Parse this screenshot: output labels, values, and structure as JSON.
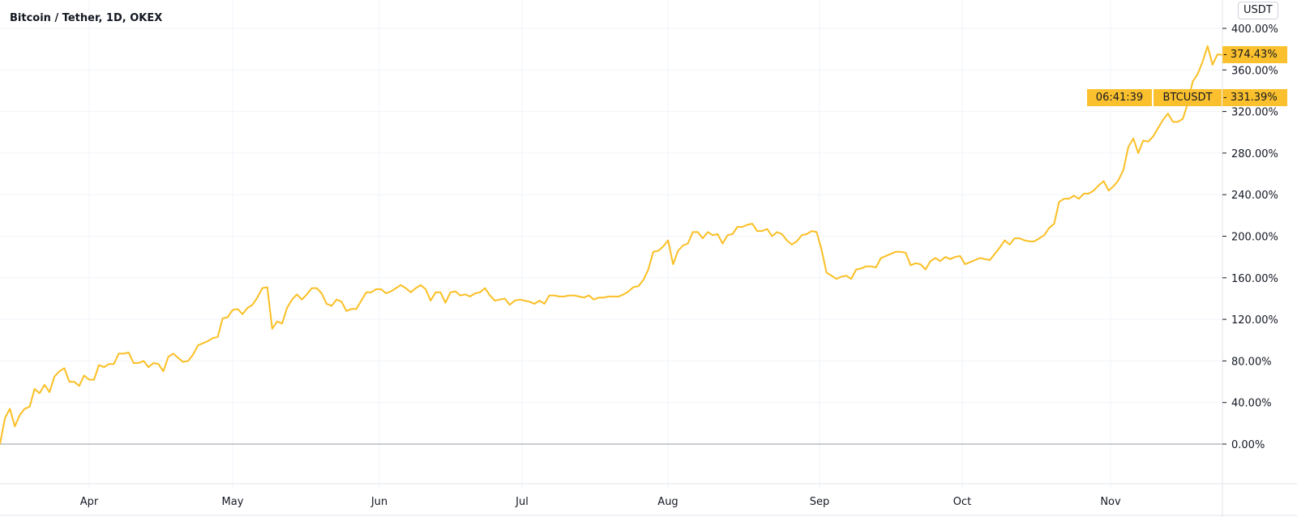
{
  "header": {
    "title": "Bitcoin / Tether, 1D, OKEX",
    "currency_button": "USDT"
  },
  "colors": {
    "line": "#fbbf24",
    "badge": "#fbc02d",
    "grid": "#f0f3fa",
    "zero_line": "#9598a1"
  },
  "badges": {
    "last_value": "374.43%",
    "symbol": "BTCUSDT",
    "symbol_value": "331.39%",
    "countdown": "06:41:39"
  },
  "chart_data": {
    "type": "line",
    "title": "Bitcoin / Tether, 1D, OKEX",
    "ylabel": "",
    "xlabel": "",
    "y_scale": "percent",
    "ylim": [
      -20,
      400
    ],
    "y_ticks": [
      "400.00%",
      "360.00%",
      "320.00%",
      "280.00%",
      "240.00%",
      "200.00%",
      "160.00%",
      "120.00%",
      "80.00%",
      "40.00%",
      "0.00%"
    ],
    "y_tick_values": [
      400,
      360,
      320,
      280,
      240,
      200,
      160,
      120,
      80,
      40,
      0
    ],
    "x_ticks": [
      "Apr",
      "May",
      "Jun",
      "Jul",
      "Aug",
      "Sep",
      "Oct",
      "Nov"
    ],
    "grid": true,
    "series": [
      {
        "values": [
          0,
          25,
          34,
          17,
          28,
          34,
          36,
          53,
          49,
          57,
          50,
          65,
          70,
          73,
          60,
          60,
          56,
          66,
          62,
          62,
          76,
          74,
          77,
          77,
          87,
          87,
          88,
          78,
          78,
          80,
          74,
          78,
          77,
          70,
          84,
          87,
          83,
          79,
          80,
          86,
          95,
          97,
          99,
          102,
          103,
          121,
          122,
          129,
          130,
          125,
          131,
          134,
          141,
          150,
          151,
          111,
          118,
          116,
          131,
          139,
          144,
          139,
          144,
          150,
          150,
          145,
          135,
          133,
          139,
          137,
          128,
          130,
          130,
          138,
          146,
          146,
          149,
          149,
          145,
          147,
          150,
          153,
          150,
          146,
          150,
          153,
          149,
          138,
          146,
          146,
          136,
          146,
          147,
          143,
          144,
          142,
          145,
          146,
          150,
          143,
          138,
          139,
          140,
          134,
          138,
          139,
          138,
          137,
          135,
          138,
          135,
          143,
          143,
          142,
          142,
          143,
          143,
          142,
          141,
          143,
          139,
          141,
          141,
          142,
          142,
          142,
          144,
          147,
          151,
          152,
          158,
          168,
          185,
          186,
          190,
          196,
          173,
          186,
          191,
          193,
          204,
          204,
          198,
          204,
          201,
          202,
          193,
          201,
          202,
          209,
          209,
          211,
          212,
          205,
          205,
          207,
          200,
          204,
          202,
          196,
          192,
          195,
          201,
          202,
          205,
          204,
          187,
          165,
          162,
          159,
          161,
          162,
          159,
          168,
          169,
          171,
          171,
          170,
          179,
          181,
          183,
          185,
          185,
          184,
          172,
          174,
          173,
          168,
          176,
          179,
          176,
          180,
          178,
          180,
          181,
          173,
          175,
          177,
          179,
          178,
          177,
          183,
          189,
          196,
          192,
          198,
          198,
          196,
          195,
          195,
          198,
          201,
          208,
          212,
          233,
          236,
          236,
          239,
          236,
          241,
          241,
          244,
          249,
          253,
          244,
          248,
          254,
          264,
          286,
          294,
          280,
          292,
          291,
          296,
          304,
          312,
          318,
          310,
          310,
          313,
          328,
          349,
          356,
          368,
          383,
          365,
          375,
          374.43
        ]
      }
    ]
  }
}
